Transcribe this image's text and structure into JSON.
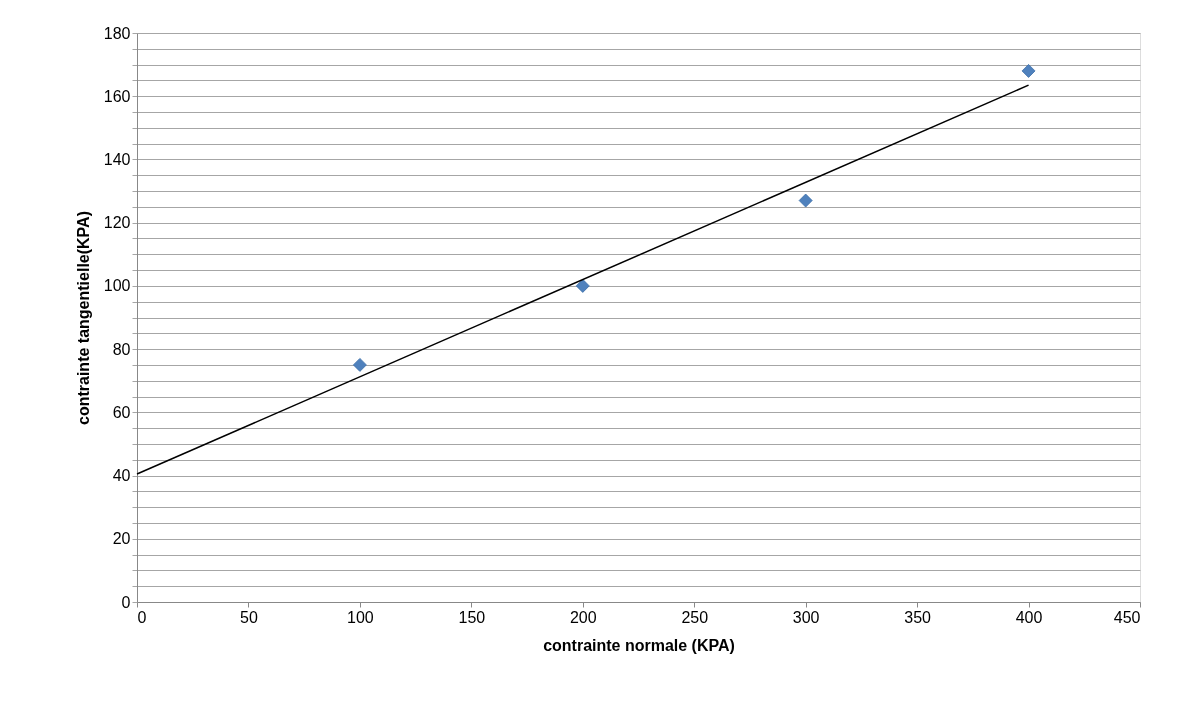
{
  "chart_data": {
    "type": "scatter",
    "xlabel": "contrainte normale (KPA)",
    "ylabel": "contrainte tangentielle(KPA)",
    "xlim": [
      0,
      450
    ],
    "xticks": [
      0,
      50,
      100,
      150,
      200,
      250,
      300,
      350,
      400,
      450
    ],
    "ylim": [
      0,
      180
    ],
    "yticks": [
      0,
      {
        "value": 5,
        "label": null
      },
      {
        "value": 10,
        "label": null
      },
      {
        "value": 15,
        "label": null
      },
      20,
      {
        "value": 25,
        "label": null
      },
      {
        "value": 30,
        "label": null
      },
      {
        "value": 35,
        "label": null
      },
      40,
      {
        "value": 45,
        "label": null
      },
      {
        "value": 50,
        "label": null
      },
      {
        "value": 55,
        "label": null
      },
      60,
      {
        "value": 65,
        "label": null
      },
      {
        "value": 70,
        "label": null
      },
      {
        "value": 75,
        "label": null
      },
      80,
      {
        "value": 85,
        "label": null
      },
      {
        "value": 90,
        "label": null
      },
      {
        "value": 95,
        "label": null
      },
      100,
      {
        "value": 105,
        "label": null
      },
      {
        "value": 110,
        "label": null
      },
      {
        "value": 115,
        "label": null
      },
      120,
      {
        "value": 125,
        "label": null
      },
      {
        "value": 130,
        "label": null
      },
      {
        "value": 135,
        "label": null
      },
      140,
      {
        "value": 145,
        "label": null
      },
      {
        "value": 150,
        "label": null
      },
      {
        "value": 155,
        "label": null
      },
      160,
      {
        "value": 165,
        "label": null
      },
      {
        "value": 170,
        "label": null
      },
      {
        "value": 175,
        "label": null
      },
      180
    ],
    "grid": "y",
    "marker": "diamond",
    "series": [
      {
        "color": "#4f81bd",
        "x": [
          100,
          200,
          300,
          400
        ],
        "values": [
          75,
          100,
          127,
          168
        ]
      },
      {
        "type": "line",
        "color": "#000000",
        "x": [
          0,
          400
        ],
        "values": [
          40.5,
          163.5
        ],
        "marker": "none",
        "line_style": "solid"
      }
    ]
  }
}
